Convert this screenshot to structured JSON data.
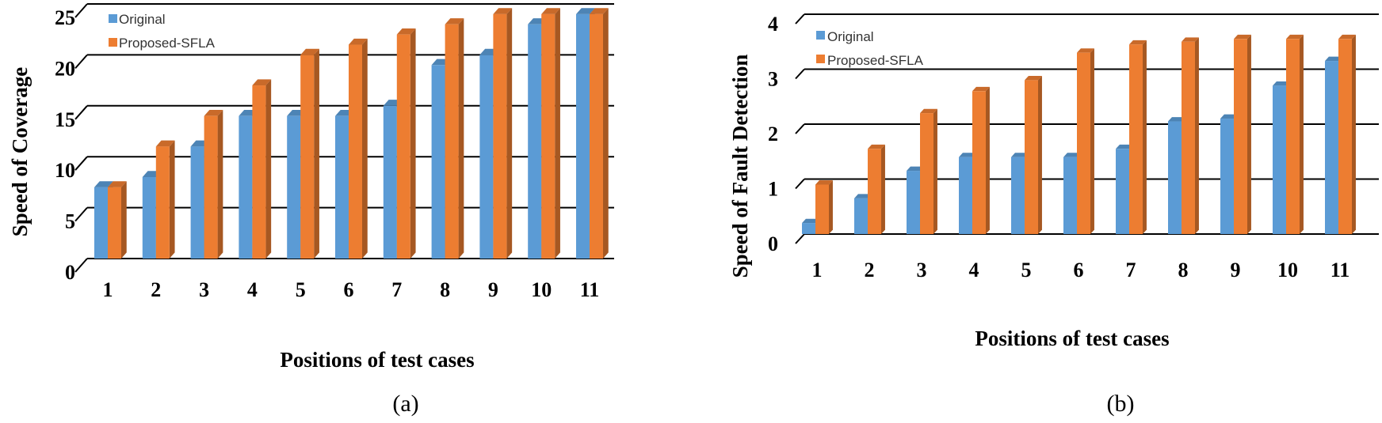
{
  "chart_data": [
    {
      "type": "bar",
      "panel_label": "(a)",
      "categories": [
        "1",
        "2",
        "3",
        "4",
        "5",
        "6",
        "7",
        "8",
        "9",
        "10",
        "11"
      ],
      "series": [
        {
          "name": "Original",
          "color": "#5b9bd5",
          "values": [
            7,
            8,
            11,
            14,
            14,
            14,
            15,
            19,
            20,
            23,
            24
          ]
        },
        {
          "name": "Proposed-SFLA",
          "color": "#ed7d31",
          "values": [
            7,
            11,
            14,
            17,
            20,
            21,
            22,
            23,
            24,
            24,
            24
          ]
        }
      ],
      "title": "",
      "xlabel": "Positions of test cases",
      "ylabel": "Speed of Coverage",
      "ylim": [
        0,
        25
      ],
      "yticks": [
        "0",
        "5",
        "10",
        "15",
        "20",
        "25"
      ],
      "grid": true,
      "legend": "top-left"
    },
    {
      "type": "bar",
      "panel_label": "(b)",
      "categories": [
        "1",
        "2",
        "3",
        "4",
        "5",
        "6",
        "7",
        "8",
        "9",
        "10",
        "11"
      ],
      "series": [
        {
          "name": "Original",
          "color": "#5b9bd5",
          "values": [
            0.2,
            0.65,
            1.15,
            1.4,
            1.4,
            1.4,
            1.55,
            2.05,
            2.1,
            2.7,
            3.15
          ]
        },
        {
          "name": "Proposed-SFLA",
          "color": "#ed7d31",
          "values": [
            0.9,
            1.55,
            2.2,
            2.6,
            2.8,
            3.3,
            3.45,
            3.5,
            3.55,
            3.55,
            3.55
          ]
        }
      ],
      "title": "",
      "xlabel": "Positions of test cases",
      "ylabel": "Speed of Fault Detection",
      "ylim": [
        0,
        4
      ],
      "yticks": [
        "0",
        "1",
        "2",
        "3",
        "4"
      ],
      "grid": true,
      "legend": "top-left"
    }
  ]
}
